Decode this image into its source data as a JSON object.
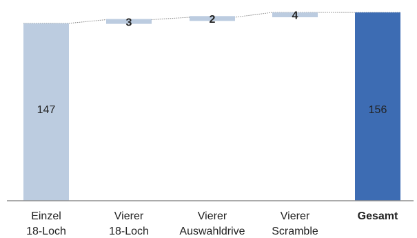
{
  "chart_data": {
    "type": "waterfall",
    "categories": [
      [
        "Einzel",
        "18-Loch"
      ],
      [
        "Vierer",
        "18-Loch"
      ],
      [
        "Vierer",
        "Auswahldrive"
      ],
      [
        "Vierer",
        "Scramble"
      ],
      [
        "Gesamt"
      ]
    ],
    "values": [
      147,
      3,
      2,
      4,
      156
    ],
    "kinds": [
      "base",
      "delta",
      "delta",
      "delta",
      "total"
    ],
    "ylim": [
      0,
      156
    ],
    "grid": false,
    "legend": "none"
  },
  "colors": {
    "bar_light": "#bccce0",
    "bar_total": "#3d6cb3",
    "delta_bar": "#bccce0",
    "axis": "#8f8f8f",
    "connector": "#7f7f7f",
    "total_label": "#ffffff",
    "text": "#222222"
  }
}
